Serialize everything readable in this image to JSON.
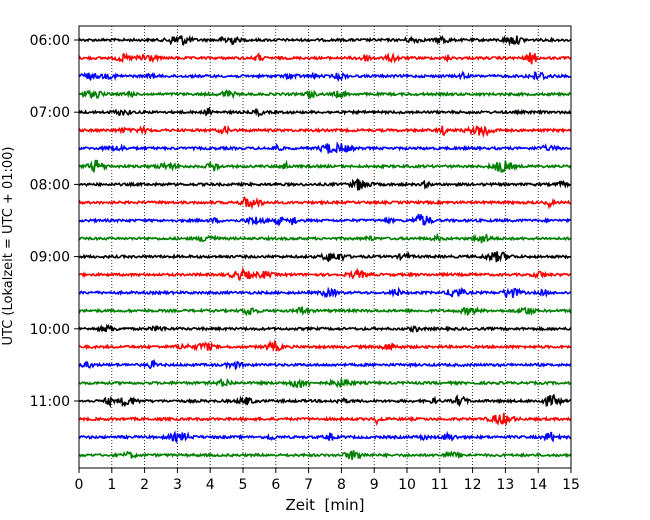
{
  "chart_data": {
    "type": "line",
    "subtype": "helicorder / seismogram drum plot",
    "title": "",
    "xlabel": "Zeit  [min]",
    "ylabel": "UTC (Lokalzeit = UTC + 01:00)",
    "xlim": [
      0,
      15
    ],
    "x_ticks": [
      0,
      1,
      2,
      3,
      4,
      5,
      6,
      7,
      8,
      9,
      10,
      11,
      12,
      13,
      14,
      15
    ],
    "x_grid": "dotted vertical lines at each minute",
    "y_tick_labels": [
      "06:00",
      "07:00",
      "08:00",
      "09:00",
      "10:00",
      "11:00"
    ],
    "traces_per_hour": 4,
    "trace_minutes": 15,
    "trace_color_cycle": [
      "#000000",
      "#ff0000",
      "#0000ff",
      "#008000"
    ],
    "trace_count": 24,
    "trace_start_times": [
      "06:00",
      "06:15",
      "06:30",
      "06:45",
      "07:00",
      "07:15",
      "07:30",
      "07:45",
      "08:00",
      "08:15",
      "08:30",
      "08:45",
      "09:00",
      "09:15",
      "09:30",
      "09:45",
      "10:00",
      "10:15",
      "10:30",
      "10:45",
      "11:00",
      "11:15",
      "11:30",
      "11:45"
    ]
  }
}
